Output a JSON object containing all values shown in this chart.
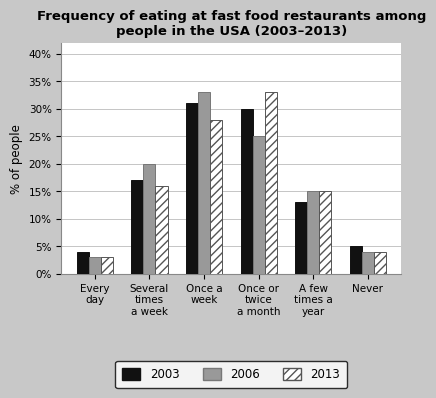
{
  "title": "Frequency of eating at fast food restaurants among\npeople in the USA (2003–2013)",
  "categories": [
    "Every\nday",
    "Several\ntimes\na week",
    "Once a\nweek",
    "Once or\ntwice\na month",
    "A few\ntimes a\nyear",
    "Never"
  ],
  "series": {
    "2003": [
      4,
      17,
      31,
      30,
      13,
      5
    ],
    "2006": [
      3,
      20,
      33,
      25,
      15,
      4
    ],
    "2013": [
      3,
      16,
      28,
      33,
      15,
      4
    ]
  },
  "bar_colors": {
    "2003": "#111111",
    "2006": "#999999",
    "2013": "#ffffff"
  },
  "bar_edgecolors": {
    "2003": "#111111",
    "2006": "#777777",
    "2013": "#555555"
  },
  "hatch": {
    "2003": "",
    "2006": "",
    "2013": "////"
  },
  "ylabel": "% of people",
  "ylim": [
    0,
    42
  ],
  "yticks": [
    0,
    5,
    10,
    15,
    20,
    25,
    30,
    35,
    40
  ],
  "ytick_labels": [
    "0%",
    "5%",
    "10%",
    "15%",
    "20%",
    "25%",
    "30%",
    "35%",
    "40%"
  ],
  "background_color": "#c8c8c8",
  "plot_background_color": "#ffffff",
  "title_fontsize": 9.5,
  "axis_fontsize": 8.5,
  "tick_fontsize": 7.5,
  "legend_fontsize": 8.5,
  "bar_width": 0.22,
  "grid": true
}
